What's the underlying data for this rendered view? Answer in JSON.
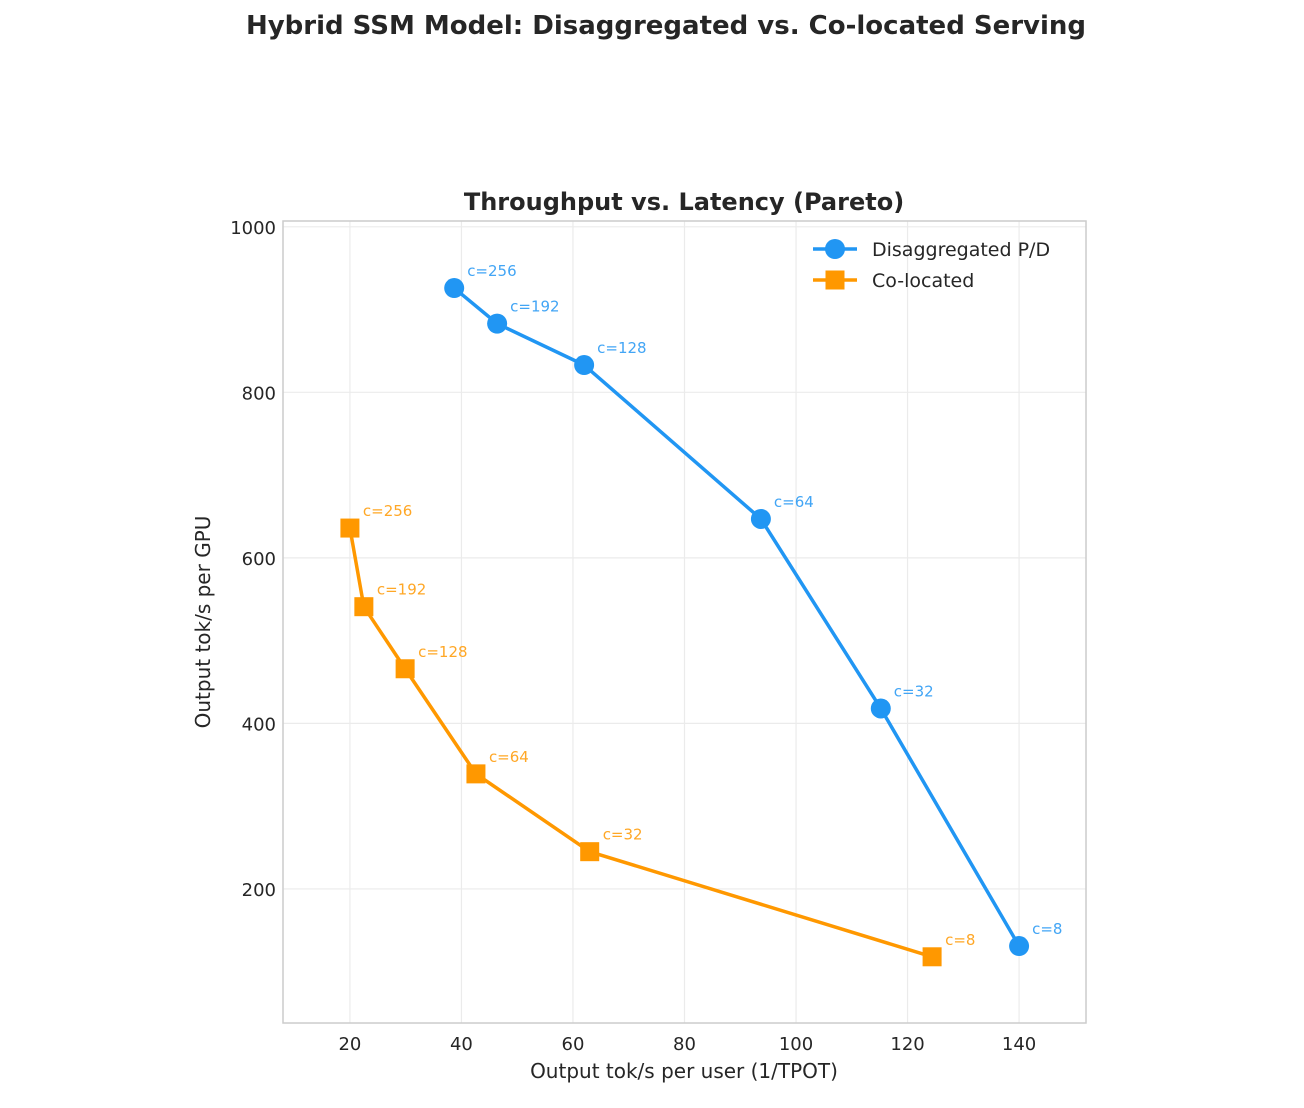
{
  "figure_title": "Hybrid SSM Model: Disaggregated vs. Co-located Serving",
  "chart_data": {
    "type": "line",
    "title": "Throughput vs. Latency (Pareto)",
    "xlabel": "Output tok/s per user (1/TPOT)",
    "ylabel": "Output tok/s per GPU",
    "xlim": [
      8,
      152
    ],
    "ylim": [
      38,
      1007
    ],
    "xticks": [
      20,
      40,
      60,
      80,
      100,
      120,
      140
    ],
    "yticks": [
      200,
      400,
      600,
      800,
      1000
    ],
    "grid": true,
    "legend_position": "top-right",
    "series": [
      {
        "name": "Disaggregated P/D",
        "color": "#2196F3",
        "label_color": "#42A5F5",
        "marker": "circle",
        "points": [
          {
            "x": 38.7,
            "y": 926,
            "label": "c=256"
          },
          {
            "x": 46.4,
            "y": 883,
            "label": "c=192"
          },
          {
            "x": 62.0,
            "y": 833,
            "label": "c=128"
          },
          {
            "x": 93.7,
            "y": 647,
            "label": "c=64"
          },
          {
            "x": 115.2,
            "y": 418,
            "label": "c=32"
          },
          {
            "x": 140.0,
            "y": 131,
            "label": "c=8"
          }
        ]
      },
      {
        "name": "Co-located",
        "color": "#FF9800",
        "label_color": "#FFA726",
        "marker": "square",
        "points": [
          {
            "x": 20.0,
            "y": 636,
            "label": "c=256"
          },
          {
            "x": 22.5,
            "y": 541,
            "label": "c=192"
          },
          {
            "x": 29.9,
            "y": 466,
            "label": "c=128"
          },
          {
            "x": 42.6,
            "y": 339,
            "label": "c=64"
          },
          {
            "x": 63.0,
            "y": 245,
            "label": "c=32"
          },
          {
            "x": 124.4,
            "y": 118,
            "label": "c=8"
          }
        ]
      }
    ]
  }
}
